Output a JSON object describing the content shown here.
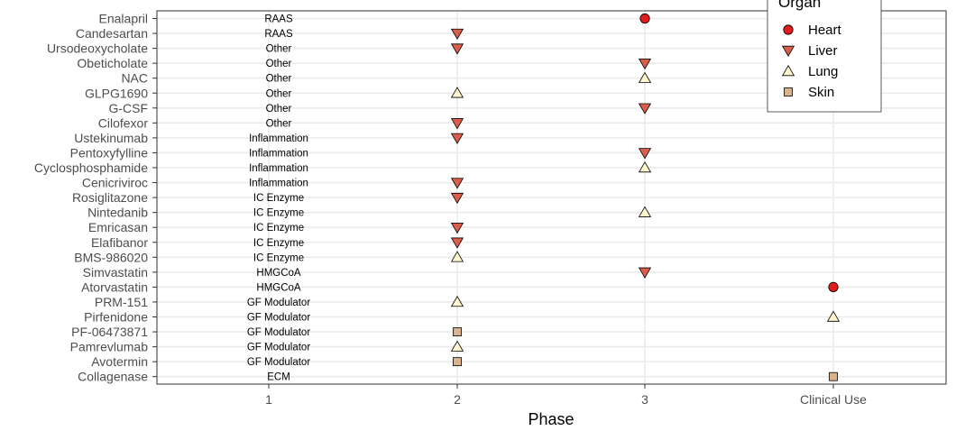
{
  "chart_data": {
    "type": "scatter",
    "xlabel": "Phase",
    "x_categories": [
      "1",
      "2",
      "3",
      "Clinical Use"
    ],
    "legend": {
      "title": "Organ",
      "position": "top-right",
      "entries": [
        {
          "name": "Heart",
          "shape": "circle",
          "color": "#e41a1c"
        },
        {
          "name": "Liver",
          "shape": "triangle-down",
          "color": "#d95f4a"
        },
        {
          "name": "Lung",
          "shape": "triangle-up",
          "color": "#fff5cc"
        },
        {
          "name": "Skin",
          "shape": "square",
          "color": "#d9b38c"
        }
      ]
    },
    "grid": true,
    "points": [
      {
        "drug": "Enalapril",
        "category": "RAAS",
        "phase": "3",
        "organ": "Heart"
      },
      {
        "drug": "Candesartan",
        "category": "RAAS",
        "phase": "2",
        "organ": "Liver"
      },
      {
        "drug": "Ursodeoxycholate",
        "category": "Other",
        "phase": "2",
        "organ": "Liver"
      },
      {
        "drug": "Obeticholate",
        "category": "Other",
        "phase": "3",
        "organ": "Liver"
      },
      {
        "drug": "NAC",
        "category": "Other",
        "phase": "3",
        "organ": "Lung"
      },
      {
        "drug": "GLPG1690",
        "category": "Other",
        "phase": "2",
        "organ": "Lung"
      },
      {
        "drug": "G-CSF",
        "category": "Other",
        "phase": "3",
        "organ": "Liver"
      },
      {
        "drug": "Cilofexor",
        "category": "Other",
        "phase": "2",
        "organ": "Liver"
      },
      {
        "drug": "Ustekinumab",
        "category": "Inflammation",
        "phase": "2",
        "organ": "Liver"
      },
      {
        "drug": "Pentoxyfylline",
        "category": "Inflammation",
        "phase": "3",
        "organ": "Liver"
      },
      {
        "drug": "Cyclosphosphamide",
        "category": "Inflammation",
        "phase": "3",
        "organ": "Lung"
      },
      {
        "drug": "Cenicriviroc",
        "category": "Inflammation",
        "phase": "2",
        "organ": "Liver"
      },
      {
        "drug": "Rosiglitazone",
        "category": "IC Enzyme",
        "phase": "2",
        "organ": "Liver"
      },
      {
        "drug": "Nintedanib",
        "category": "IC Enzyme",
        "phase": "3",
        "organ": "Lung"
      },
      {
        "drug": "Emricasan",
        "category": "IC Enzyme",
        "phase": "2",
        "organ": "Liver"
      },
      {
        "drug": "Elafibanor",
        "category": "IC Enzyme",
        "phase": "2",
        "organ": "Liver"
      },
      {
        "drug": "BMS-986020",
        "category": "IC Enzyme",
        "phase": "2",
        "organ": "Lung"
      },
      {
        "drug": "Simvastatin",
        "category": "HMGCoA",
        "phase": "3",
        "organ": "Liver"
      },
      {
        "drug": "Atorvastatin",
        "category": "HMGCoA",
        "phase": "Clinical Use",
        "organ": "Heart"
      },
      {
        "drug": "PRM-151",
        "category": "GF Modulator",
        "phase": "2",
        "organ": "Lung"
      },
      {
        "drug": "Pirfenidone",
        "category": "GF Modulator",
        "phase": "Clinical Use",
        "organ": "Lung"
      },
      {
        "drug": "PF-06473871",
        "category": "GF Modulator",
        "phase": "2",
        "organ": "Skin"
      },
      {
        "drug": "Pamrevlumab",
        "category": "GF Modulator",
        "phase": "2",
        "organ": "Lung"
      },
      {
        "drug": "Avotermin",
        "category": "GF Modulator",
        "phase": "2",
        "organ": "Skin"
      },
      {
        "drug": "Collagenase",
        "category": "ECM",
        "phase": "Clinical Use",
        "organ": "Skin"
      }
    ]
  }
}
